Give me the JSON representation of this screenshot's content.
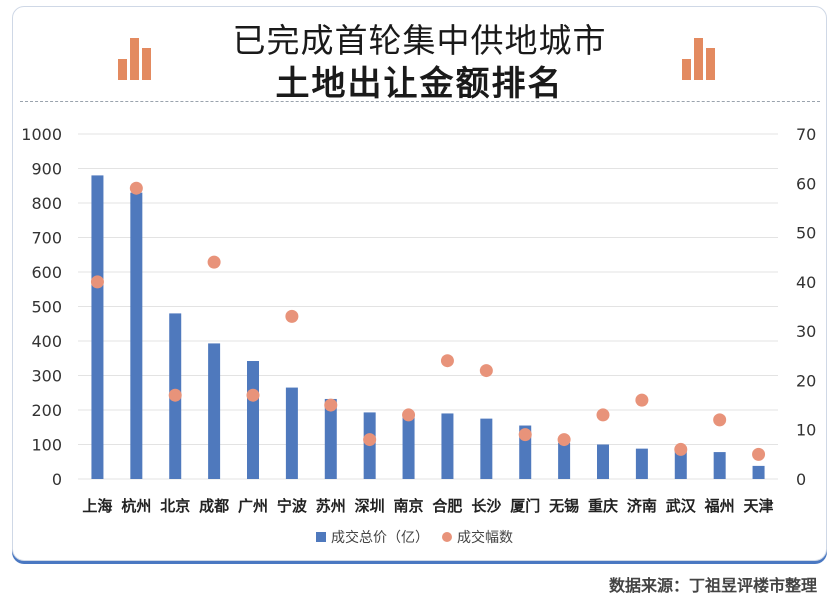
{
  "header": {
    "line1": "已完成首轮集中供地城市",
    "line2": "土地出让金额排名"
  },
  "icons": {
    "left": "bar-chart-icon",
    "right": "bar-chart-icon"
  },
  "colors": {
    "bar": "#4f79bd",
    "dot": "#e8937a",
    "accent": "#4a78c2",
    "deco": "#e38a60"
  },
  "source": "数据来源：丁祖昱评楼市整理",
  "chart_data": {
    "type": "bar",
    "categories": [
      "上海",
      "杭州",
      "北京",
      "成都",
      "广州",
      "宁波",
      "苏州",
      "深圳",
      "南京",
      "合肥",
      "长沙",
      "厦门",
      "无锡",
      "重庆",
      "济南",
      "武汉",
      "福州",
      "天津"
    ],
    "series": [
      {
        "name": "成交总价（亿）",
        "type": "bar",
        "axis": "left",
        "values": [
          880,
          830,
          480,
          393,
          342,
          265,
          232,
          193,
          182,
          190,
          175,
          155,
          105,
          100,
          88,
          88,
          78,
          38
        ]
      },
      {
        "name": "成交幅数",
        "type": "scatter",
        "axis": "right",
        "values": [
          40,
          59,
          17,
          44,
          17,
          33,
          15,
          8,
          13,
          24,
          22,
          9,
          8,
          13,
          16,
          6,
          12,
          5
        ]
      }
    ],
    "left_axis": {
      "min": 0,
      "max": 1000,
      "ticks": [
        0,
        100,
        200,
        300,
        400,
        500,
        600,
        700,
        800,
        900,
        1000
      ]
    },
    "right_axis": {
      "min": 0,
      "max": 70,
      "ticks": [
        0,
        10,
        20,
        30,
        40,
        50,
        60,
        70
      ]
    },
    "grid": true,
    "legend": "bottom"
  }
}
